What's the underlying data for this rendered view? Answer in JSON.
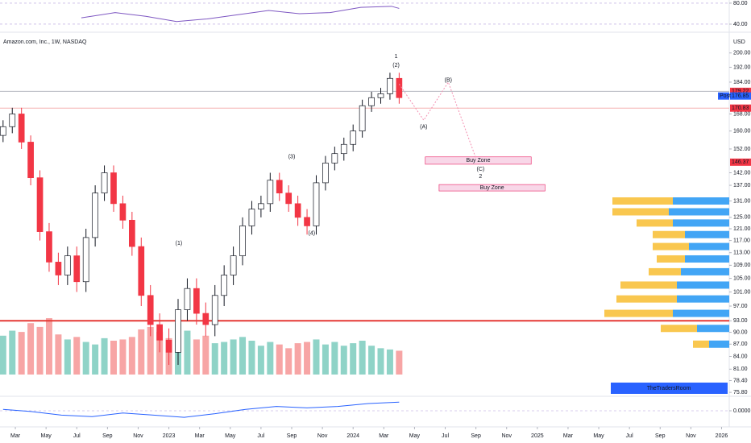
{
  "header": {
    "title": "Amazon.com, Inc., 1W, NASDAQ",
    "currency": "USD"
  },
  "watermark": "TheTradersRoom",
  "chart_data": [
    {
      "type": "candlestick",
      "x": [
        1.2,
        1.8,
        2.4,
        3.0,
        3.6,
        4.2,
        4.8,
        5.4,
        6.0,
        6.6,
        7.2,
        7.8,
        8.4,
        9.0,
        9.6,
        10.2,
        10.8,
        11.4,
        12.0,
        12.6,
        13.2,
        13.8,
        14.4,
        15.0,
        15.6,
        16.2,
        16.8,
        17.4,
        18.0,
        18.6,
        19.2,
        19.8,
        20.4,
        21.0,
        21.6,
        22.2,
        22.8,
        23.4,
        24.0,
        24.6,
        25.2,
        25.8,
        26.4,
        27.0
      ],
      "open": [
        158,
        162,
        168,
        155,
        140,
        120,
        110,
        106,
        112,
        104,
        118,
        134,
        142,
        130,
        124,
        115,
        100,
        92,
        88,
        85,
        96,
        102,
        95,
        92,
        100,
        106,
        112,
        122,
        128,
        130,
        139,
        134,
        130,
        125,
        122,
        138,
        146,
        150,
        154,
        160,
        172,
        176,
        178,
        186
      ],
      "high": [
        165,
        171,
        171,
        158,
        143,
        123,
        113,
        115,
        115,
        121,
        137,
        145,
        145,
        133,
        127,
        118,
        103,
        95,
        91,
        99,
        105,
        105,
        98,
        103,
        109,
        115,
        125,
        131,
        133,
        142,
        142,
        137,
        133,
        128,
        141,
        149,
        153,
        157,
        163,
        175,
        179,
        181,
        189,
        189
      ],
      "low": [
        155,
        159,
        152,
        137,
        117,
        107,
        103,
        103,
        101,
        101,
        115,
        131,
        127,
        121,
        112,
        97,
        89,
        85,
        82,
        82,
        93,
        92,
        89,
        89,
        97,
        103,
        109,
        119,
        125,
        127,
        131,
        127,
        122,
        119,
        119,
        135,
        143,
        147,
        151,
        157,
        169,
        173,
        175,
        173
      ],
      "close": [
        162,
        168,
        155,
        140,
        120,
        110,
        106,
        112,
        104,
        118,
        134,
        142,
        130,
        124,
        115,
        100,
        92,
        88,
        85,
        96,
        102,
        95,
        92,
        100,
        106,
        112,
        122,
        128,
        130,
        139,
        134,
        130,
        125,
        122,
        138,
        146,
        150,
        154,
        160,
        172,
        176,
        178,
        186,
        176
      ],
      "up_color": "#ffffff",
      "down_color": "#f23645",
      "volume": [
        620,
        700,
        680,
        820,
        760,
        900,
        640,
        560,
        600,
        520,
        480,
        580,
        540,
        560,
        600,
        720,
        760,
        680,
        580,
        820,
        700,
        560,
        620,
        500,
        520,
        560,
        600,
        540,
        460,
        520,
        480,
        420,
        500,
        520,
        560,
        480,
        520,
        460,
        500,
        540,
        460,
        420,
        400,
        380
      ],
      "volume_up_color": "#8fd3c7",
      "volume_down_color": "#f7a5a5",
      "xlim": [
        1,
        48.5
      ],
      "xticks": [
        {
          "value": 2,
          "label": "Mar"
        },
        {
          "value": 4,
          "label": "May"
        },
        {
          "value": 6,
          "label": "Jul"
        },
        {
          "value": 8,
          "label": "Sep"
        },
        {
          "value": 10,
          "label": "Nov"
        },
        {
          "value": 12,
          "label": "2023"
        },
        {
          "value": 14,
          "label": "Mar"
        },
        {
          "value": 16,
          "label": "May"
        },
        {
          "value": 18,
          "label": "Jul"
        },
        {
          "value": 20,
          "label": "Sep"
        },
        {
          "value": 22,
          "label": "Nov"
        },
        {
          "value": 24,
          "label": "2024"
        },
        {
          "value": 26,
          "label": "Mar"
        },
        {
          "value": 28,
          "label": "May"
        },
        {
          "value": 30,
          "label": "Jul"
        },
        {
          "value": 32,
          "label": "Sep"
        },
        {
          "value": 34,
          "label": "Nov"
        },
        {
          "value": 36,
          "label": "2025"
        },
        {
          "value": 38,
          "label": "Mar"
        },
        {
          "value": 40,
          "label": "May"
        },
        {
          "value": 42,
          "label": "Jul"
        },
        {
          "value": 44,
          "label": "Sep"
        },
        {
          "value": 46,
          "label": "Nov"
        },
        {
          "value": 48,
          "label": "2026"
        }
      ],
      "ylim": [
        75.3,
        203.6
      ],
      "log_scale": true,
      "yticks": [
        {
          "value": 200,
          "label": "200.00"
        },
        {
          "value": 192,
          "label": "192.00"
        },
        {
          "value": 184,
          "label": "184.00"
        },
        {
          "value": 168,
          "label": "168.00"
        },
        {
          "value": 160,
          "label": "160.00"
        },
        {
          "value": 152,
          "label": "152.00"
        },
        {
          "value": 142,
          "label": "142.00"
        },
        {
          "value": 137,
          "label": "137.00"
        },
        {
          "value": 131,
          "label": "131.00"
        },
        {
          "value": 125,
          "label": "125.00"
        },
        {
          "value": 121,
          "label": "121.00"
        },
        {
          "value": 117,
          "label": "117.00"
        },
        {
          "value": 113,
          "label": "113.00"
        },
        {
          "value": 109,
          "label": "109.00"
        },
        {
          "value": 105,
          "label": "105.00"
        },
        {
          "value": 101,
          "label": "101.00"
        },
        {
          "value": 97,
          "label": "97.00"
        },
        {
          "value": 93,
          "label": "93.00"
        },
        {
          "value": 90,
          "label": "90.00"
        },
        {
          "value": 87,
          "label": "87.00"
        },
        {
          "value": 84,
          "label": "84.00"
        },
        {
          "value": 81,
          "label": "81.00"
        },
        {
          "value": 78.4,
          "label": "78.40"
        },
        {
          "value": 75.8,
          "label": "75.80"
        }
      ],
      "hlines": [
        {
          "value": 93,
          "color": "#e53935"
        },
        {
          "value": 170.83,
          "color": "#f6b0b0"
        },
        {
          "value": 179.22,
          "color": "#b2b5be"
        }
      ],
      "price_labels": [
        {
          "value": 179.22,
          "label": "179.22",
          "color": "#f23645"
        },
        {
          "value": 176.85,
          "label": "176.85",
          "tag": "Post",
          "color": "#2962ff"
        },
        {
          "value": 170.83,
          "label": "170.83",
          "color": "#f23645"
        },
        {
          "value": 146.37,
          "label": "146.37",
          "color": "#f23645"
        }
      ],
      "zones": [
        {
          "label": "Buy Zone",
          "x": [
            28.7,
            35.6
          ],
          "y": [
            145.5,
            148.6
          ],
          "color": "#f8d7e8"
        },
        {
          "label": "Buy Zone",
          "x": [
            29.6,
            36.5
          ],
          "y": [
            134.8,
            137.3
          ],
          "color": "#f8d7e8"
        }
      ],
      "projection": {
        "x": [
          27.0,
          28.6,
          30.2,
          32.0
        ],
        "y": [
          183,
          165,
          184,
          148
        ],
        "color": "#f48fb1"
      },
      "annotations": [
        {
          "text": "1",
          "x": 26.8,
          "y": 198,
          "color": "#000000"
        },
        {
          "text": "(2)",
          "x": 26.8,
          "y": 193,
          "color": "#2e9e3e"
        },
        {
          "text": "(3)",
          "x": 20.0,
          "y": 148.6,
          "color": "#2e9e3e"
        },
        {
          "text": "(4)",
          "x": 21.3,
          "y": 119.4,
          "color": "#2e9e3e"
        },
        {
          "text": "(1)",
          "x": 12.65,
          "y": 116,
          "color": "#2e9e3e"
        },
        {
          "text": "(A)",
          "x": 28.6,
          "y": 161.8,
          "color": "#f23645"
        },
        {
          "text": "(B)",
          "x": 30.2,
          "y": 185,
          "color": "#f23645"
        },
        {
          "text": "(C)",
          "x": 32.3,
          "y": 143.4,
          "color": "#f23645"
        },
        {
          "text": "2",
          "x": 32.3,
          "y": 140.5,
          "color": "#000000"
        }
      ],
      "volume_profile": {
        "levels": [
          131,
          127,
          123,
          119,
          115,
          111,
          107,
          103,
          99,
          95,
          91,
          87
        ],
        "sell": [
          70,
          75,
          70,
          55,
          50,
          55,
          60,
          65,
          65,
          70,
          40,
          25
        ],
        "buy": [
          75,
          70,
          45,
          40,
          45,
          35,
          40,
          70,
          75,
          85,
          45,
          20
        ],
        "sell_color": "#42a5f5",
        "buy_color": "#f9c74f"
      }
    },
    {
      "type": "line",
      "x": [
        6.3,
        8.5,
        10.5,
        12.5,
        14.5,
        16.5,
        18.5,
        20.5,
        22.5,
        24.5,
        26.5,
        27.0
      ],
      "values": [
        52,
        62,
        55,
        45,
        50,
        58,
        66,
        60,
        62,
        72,
        74,
        70
      ],
      "color": "#7e57c2",
      "xlim": [
        1,
        48.5
      ],
      "ylim": [
        27.7,
        86
      ],
      "yticks": [
        {
          "value": 80,
          "label": "80.00"
        },
        {
          "value": 40,
          "label": "40.00"
        }
      ]
    },
    {
      "type": "line",
      "x": [
        1.2,
        3,
        5,
        7,
        9,
        11,
        13,
        15,
        17,
        19,
        21,
        23,
        25,
        27.0
      ],
      "values": [
        2,
        -1,
        -6,
        -8,
        -3,
        -6,
        -9,
        -4,
        2,
        6,
        4,
        6,
        10,
        12
      ],
      "color": "#2962ff",
      "xlim": [
        1,
        48.5
      ],
      "ylim": [
        -20,
        20
      ],
      "yticks": [
        {
          "value": 0,
          "label": "0.0000"
        }
      ]
    }
  ]
}
